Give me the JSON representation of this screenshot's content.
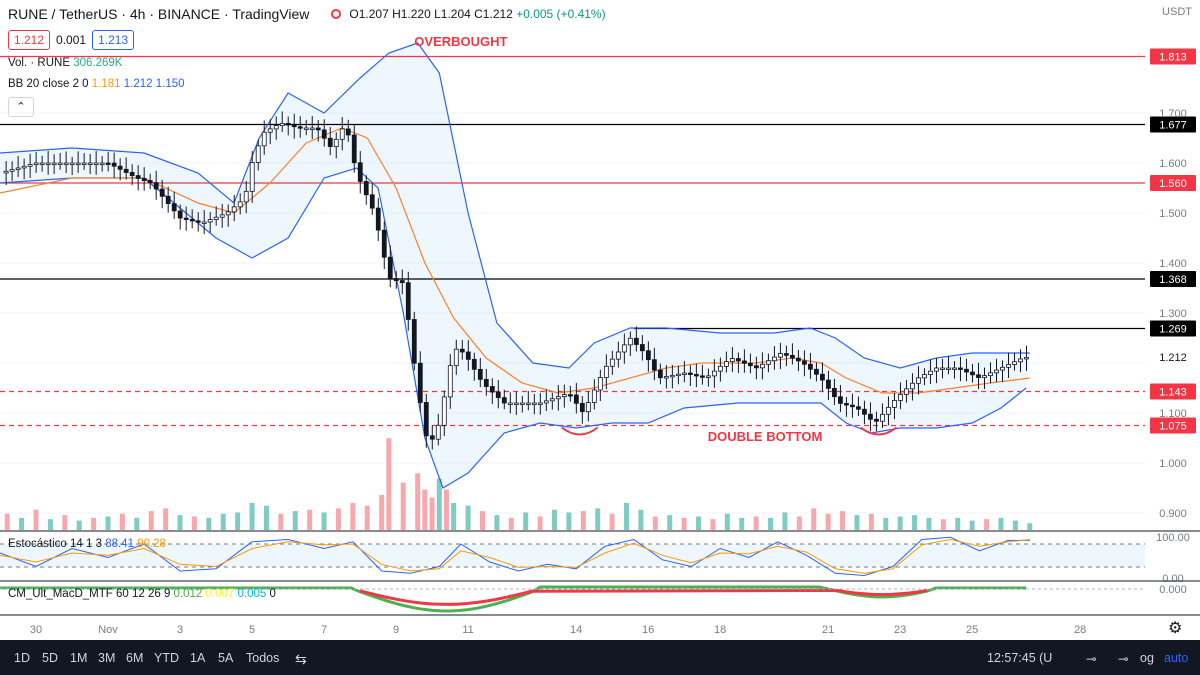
{
  "header": {
    "symbol": "RUNE / TetherUS · 4h · BINANCE · TradingView",
    "ohlc": "O1.207 H1.220 L1.204 C1.212",
    "change": "+0.005 (+0.41%)",
    "bid": "1.212",
    "spread": "0.001",
    "ask": "1.213",
    "currency": "USDT"
  },
  "indicators": {
    "volume_label": "Vol. · RUNE",
    "volume_value": "306.269K",
    "bb_label": "BB 20 close 2 0",
    "bb_basis": "1.181",
    "bb_upper": "1.212",
    "bb_lower": "1.150",
    "stoch_label": "Estocástico 14 1 3",
    "stoch_k": "88.41",
    "stoch_d": "90.28",
    "macd_label": "CM_Ult_MacD_MTF 60 12 26 9",
    "macd_v1": "0.012",
    "macd_v2": "0.007",
    "macd_v3": "0.005",
    "macd_v4": "0"
  },
  "colors": {
    "up": "#26a69a",
    "down": "#131722",
    "bb_band": "#2962ff",
    "bb_basis": "#ff7f27",
    "resistance": "#f23645",
    "level_black": "#000000",
    "vol_up": "#80cbc4",
    "vol_down": "#f7a8ad"
  },
  "annotations": {
    "overbought": "OVERBOUGHT",
    "double_bottom": "DOUBLE BOTTOM"
  },
  "toolbar": {
    "timeframes": [
      "1D",
      "5D",
      "1M",
      "3M",
      "6M",
      "YTD",
      "1A",
      "5A",
      "Todos"
    ],
    "clock": "12:57:45 (U",
    "log_label": "og",
    "auto_label": "auto",
    "compare_icon": "calendar-range-icon",
    "settings_icon": "gear-icon"
  },
  "chart_data": {
    "type": "candlestick",
    "ylim": [
      0.87,
      1.87
    ],
    "y_ticks": [
      0.9,
      1.0,
      1.1,
      1.2,
      1.3,
      1.4,
      1.5,
      1.6,
      1.7
    ],
    "y_tick_labels": [
      "0.900",
      "1.000",
      "1.100",
      "1.200",
      "1.300",
      "1.400",
      "1.500",
      "1.600",
      "1.700"
    ],
    "current_price": "1.212",
    "x_labels": [
      "30",
      "Nov",
      "3",
      "5",
      "7",
      "9",
      "11",
      "14",
      "16",
      "18",
      "21",
      "23",
      "25",
      "28"
    ],
    "x_label_days": [
      -1,
      1,
      3,
      5,
      7,
      9,
      11,
      14,
      16,
      18,
      21,
      23,
      25,
      28
    ],
    "days_shown": [
      -2.0,
      29.8
    ],
    "levels": [
      {
        "value": 1.813,
        "label": "1.813",
        "style": "solid",
        "color": "#f23645"
      },
      {
        "value": 1.677,
        "label": "1.677",
        "style": "solid",
        "color": "#000000"
      },
      {
        "value": 1.56,
        "label": "1.560",
        "style": "solid",
        "color": "#f23645"
      },
      {
        "value": 1.368,
        "label": "1.368",
        "style": "solid",
        "color": "#000000"
      },
      {
        "value": 1.269,
        "label": "1.269",
        "style": "solid",
        "color": "#000000",
        "partial": true
      },
      {
        "value": 1.143,
        "label": "1.143",
        "style": "dashed",
        "color": "#f23645"
      },
      {
        "value": 1.075,
        "label": "1.075",
        "style": "dashed",
        "color": "#f23645"
      }
    ],
    "price_path": [
      [
        -2.0,
        1.58
      ],
      [
        -1.0,
        1.6
      ],
      [
        0.0,
        1.6
      ],
      [
        1.0,
        1.6
      ],
      [
        1.8,
        1.57
      ],
      [
        2.2,
        1.56
      ],
      [
        3.0,
        1.49
      ],
      [
        3.6,
        1.48
      ],
      [
        4.3,
        1.5
      ],
      [
        4.8,
        1.53
      ],
      [
        5.0,
        1.6
      ],
      [
        5.3,
        1.66
      ],
      [
        5.8,
        1.68
      ],
      [
        6.3,
        1.67
      ],
      [
        6.8,
        1.67
      ],
      [
        7.2,
        1.63
      ],
      [
        7.6,
        1.68
      ],
      [
        7.9,
        1.58
      ],
      [
        8.4,
        1.5
      ],
      [
        8.8,
        1.37
      ],
      [
        9.2,
        1.36
      ],
      [
        9.6,
        1.15
      ],
      [
        9.9,
        1.03
      ],
      [
        10.2,
        1.08
      ],
      [
        10.6,
        1.23
      ],
      [
        10.9,
        1.22
      ],
      [
        11.4,
        1.16
      ],
      [
        12.0,
        1.12
      ],
      [
        13.0,
        1.12
      ],
      [
        13.8,
        1.14
      ],
      [
        14.2,
        1.1
      ],
      [
        14.8,
        1.19
      ],
      [
        15.5,
        1.25
      ],
      [
        15.9,
        1.22
      ],
      [
        16.3,
        1.17
      ],
      [
        17.0,
        1.18
      ],
      [
        17.6,
        1.17
      ],
      [
        18.3,
        1.21
      ],
      [
        19.0,
        1.19
      ],
      [
        19.7,
        1.22
      ],
      [
        20.3,
        1.2
      ],
      [
        20.8,
        1.17
      ],
      [
        21.3,
        1.12
      ],
      [
        21.8,
        1.11
      ],
      [
        22.3,
        1.08
      ],
      [
        22.9,
        1.13
      ],
      [
        23.5,
        1.17
      ],
      [
        24.0,
        1.19
      ],
      [
        24.6,
        1.19
      ],
      [
        25.2,
        1.17
      ],
      [
        25.8,
        1.19
      ],
      [
        26.4,
        1.21
      ],
      [
        26.6,
        1.212
      ]
    ],
    "bb_upper_path": [
      [
        -2.0,
        1.62
      ],
      [
        0.0,
        1.63
      ],
      [
        2.0,
        1.62
      ],
      [
        3.5,
        1.58
      ],
      [
        4.5,
        1.52
      ],
      [
        5.2,
        1.65
      ],
      [
        6.0,
        1.74
      ],
      [
        7.0,
        1.7
      ],
      [
        8.0,
        1.77
      ],
      [
        8.8,
        1.82
      ],
      [
        9.6,
        1.84
      ],
      [
        10.2,
        1.78
      ],
      [
        11.0,
        1.5
      ],
      [
        11.8,
        1.28
      ],
      [
        12.8,
        1.2
      ],
      [
        13.8,
        1.19
      ],
      [
        14.5,
        1.24
      ],
      [
        15.5,
        1.27
      ],
      [
        16.5,
        1.27
      ],
      [
        18.0,
        1.26
      ],
      [
        19.5,
        1.26
      ],
      [
        20.5,
        1.27
      ],
      [
        21.2,
        1.25
      ],
      [
        22.0,
        1.21
      ],
      [
        23.0,
        1.19
      ],
      [
        24.0,
        1.21
      ],
      [
        25.0,
        1.22
      ],
      [
        26.0,
        1.22
      ],
      [
        26.6,
        1.22
      ]
    ],
    "bb_lower_path": [
      [
        -2.0,
        1.56
      ],
      [
        0.0,
        1.57
      ],
      [
        2.0,
        1.57
      ],
      [
        3.0,
        1.51
      ],
      [
        4.0,
        1.45
      ],
      [
        5.0,
        1.41
      ],
      [
        6.0,
        1.45
      ],
      [
        7.0,
        1.57
      ],
      [
        7.9,
        1.59
      ],
      [
        8.5,
        1.55
      ],
      [
        9.2,
        1.3
      ],
      [
        9.8,
        1.05
      ],
      [
        10.3,
        0.95
      ],
      [
        11.0,
        0.98
      ],
      [
        12.0,
        1.06
      ],
      [
        13.0,
        1.08
      ],
      [
        14.0,
        1.07
      ],
      [
        15.0,
        1.08
      ],
      [
        16.0,
        1.08
      ],
      [
        17.0,
        1.11
      ],
      [
        18.5,
        1.12
      ],
      [
        20.0,
        1.12
      ],
      [
        20.8,
        1.12
      ],
      [
        21.5,
        1.08
      ],
      [
        22.2,
        1.06
      ],
      [
        23.0,
        1.07
      ],
      [
        24.0,
        1.07
      ],
      [
        25.0,
        1.08
      ],
      [
        25.8,
        1.11
      ],
      [
        26.5,
        1.15
      ]
    ],
    "bb_basis_path": [
      [
        -2.0,
        1.54
      ],
      [
        0.0,
        1.57
      ],
      [
        2.0,
        1.57
      ],
      [
        3.5,
        1.52
      ],
      [
        4.5,
        1.5
      ],
      [
        5.5,
        1.56
      ],
      [
        6.5,
        1.64
      ],
      [
        7.5,
        1.67
      ],
      [
        8.2,
        1.65
      ],
      [
        9.0,
        1.55
      ],
      [
        9.8,
        1.4
      ],
      [
        10.6,
        1.29
      ],
      [
        11.5,
        1.21
      ],
      [
        12.5,
        1.16
      ],
      [
        13.5,
        1.14
      ],
      [
        14.5,
        1.15
      ],
      [
        15.5,
        1.17
      ],
      [
        16.5,
        1.19
      ],
      [
        17.5,
        1.2
      ],
      [
        19.0,
        1.2
      ],
      [
        20.0,
        1.21
      ],
      [
        20.8,
        1.2
      ],
      [
        21.5,
        1.17
      ],
      [
        22.5,
        1.14
      ],
      [
        23.5,
        1.14
      ],
      [
        24.5,
        1.15
      ],
      [
        25.5,
        1.16
      ],
      [
        26.6,
        1.17
      ]
    ],
    "double_bottom_days": [
      14.1,
      22.4
    ],
    "overbought_day": 10.8,
    "stochastic": {
      "ylim": [
        0,
        100
      ],
      "tick_labels": [
        "100.00",
        "0.00"
      ],
      "k_path": [
        [
          -2,
          60
        ],
        [
          -1,
          30
        ],
        [
          0,
          70
        ],
        [
          1,
          50
        ],
        [
          2,
          80
        ],
        [
          3,
          20
        ],
        [
          4,
          25
        ],
        [
          5,
          85
        ],
        [
          6,
          90
        ],
        [
          7,
          70
        ],
        [
          7.8,
          85
        ],
        [
          8.6,
          20
        ],
        [
          9.4,
          15
        ],
        [
          10.2,
          30
        ],
        [
          10.8,
          80
        ],
        [
          11.6,
          40
        ],
        [
          12.4,
          20
        ],
        [
          13.2,
          35
        ],
        [
          14,
          25
        ],
        [
          14.8,
          75
        ],
        [
          15.6,
          90
        ],
        [
          16.4,
          45
        ],
        [
          17.2,
          30
        ],
        [
          18,
          70
        ],
        [
          18.8,
          50
        ],
        [
          19.6,
          85
        ],
        [
          20.4,
          55
        ],
        [
          21.2,
          15
        ],
        [
          22.0,
          10
        ],
        [
          22.8,
          30
        ],
        [
          23.6,
          90
        ],
        [
          24.4,
          95
        ],
        [
          25.2,
          65
        ],
        [
          26.0,
          88
        ],
        [
          26.6,
          88
        ]
      ],
      "d_path": [
        [
          -2,
          55
        ],
        [
          -1,
          40
        ],
        [
          0,
          60
        ],
        [
          1,
          55
        ],
        [
          2,
          70
        ],
        [
          3,
          35
        ],
        [
          4,
          30
        ],
        [
          5,
          70
        ],
        [
          6,
          85
        ],
        [
          7,
          78
        ],
        [
          7.8,
          80
        ],
        [
          8.6,
          35
        ],
        [
          9.4,
          20
        ],
        [
          10.2,
          25
        ],
        [
          10.8,
          65
        ],
        [
          11.6,
          50
        ],
        [
          12.4,
          28
        ],
        [
          13.2,
          30
        ],
        [
          14,
          28
        ],
        [
          14.8,
          60
        ],
        [
          15.6,
          82
        ],
        [
          16.4,
          55
        ],
        [
          17.2,
          38
        ],
        [
          18,
          60
        ],
        [
          18.8,
          58
        ],
        [
          19.6,
          75
        ],
        [
          20.4,
          62
        ],
        [
          21.2,
          25
        ],
        [
          22.0,
          15
        ],
        [
          22.8,
          25
        ],
        [
          23.6,
          78
        ],
        [
          24.4,
          90
        ],
        [
          25.2,
          75
        ],
        [
          26.0,
          85
        ],
        [
          26.6,
          90
        ]
      ]
    },
    "volume": {
      "ylim": [
        0,
        1000
      ],
      "bars": [
        [
          -1.8,
          120,
          "down"
        ],
        [
          -1.4,
          90,
          "up"
        ],
        [
          -1.0,
          150,
          "down"
        ],
        [
          -0.6,
          80,
          "up"
        ],
        [
          -0.2,
          110,
          "down"
        ],
        [
          0.2,
          70,
          "up"
        ],
        [
          0.6,
          90,
          "down"
        ],
        [
          1.0,
          100,
          "up"
        ],
        [
          1.4,
          120,
          "down"
        ],
        [
          1.8,
          90,
          "up"
        ],
        [
          2.2,
          140,
          "down"
        ],
        [
          2.6,
          160,
          "down"
        ],
        [
          3.0,
          110,
          "up"
        ],
        [
          3.4,
          100,
          "down"
        ],
        [
          3.8,
          90,
          "up"
        ],
        [
          4.2,
          120,
          "up"
        ],
        [
          4.6,
          130,
          "up"
        ],
        [
          5.0,
          200,
          "up"
        ],
        [
          5.4,
          180,
          "up"
        ],
        [
          5.8,
          120,
          "down"
        ],
        [
          6.2,
          140,
          "up"
        ],
        [
          6.6,
          150,
          "down"
        ],
        [
          7.0,
          130,
          "up"
        ],
        [
          7.4,
          160,
          "down"
        ],
        [
          7.8,
          200,
          "down"
        ],
        [
          8.2,
          180,
          "down"
        ],
        [
          8.6,
          260,
          "down"
        ],
        [
          8.8,
          680,
          "down"
        ],
        [
          9.2,
          350,
          "down"
        ],
        [
          9.6,
          420,
          "down"
        ],
        [
          9.8,
          300,
          "down"
        ],
        [
          10.0,
          240,
          "down"
        ],
        [
          10.2,
          380,
          "up"
        ],
        [
          10.4,
          300,
          "down"
        ],
        [
          10.6,
          200,
          "up"
        ],
        [
          11.0,
          180,
          "up"
        ],
        [
          11.4,
          140,
          "down"
        ],
        [
          11.8,
          110,
          "up"
        ],
        [
          12.2,
          90,
          "down"
        ],
        [
          12.6,
          130,
          "up"
        ],
        [
          13.0,
          100,
          "down"
        ],
        [
          13.4,
          150,
          "up"
        ],
        [
          13.8,
          130,
          "up"
        ],
        [
          14.2,
          140,
          "down"
        ],
        [
          14.6,
          160,
          "up"
        ],
        [
          15.0,
          120,
          "down"
        ],
        [
          15.4,
          200,
          "up"
        ],
        [
          15.8,
          150,
          "up"
        ],
        [
          16.2,
          100,
          "down"
        ],
        [
          16.6,
          110,
          "up"
        ],
        [
          17.0,
          90,
          "down"
        ],
        [
          17.4,
          100,
          "up"
        ],
        [
          17.8,
          80,
          "down"
        ],
        [
          18.2,
          120,
          "up"
        ],
        [
          18.6,
          90,
          "up"
        ],
        [
          19.0,
          100,
          "down"
        ],
        [
          19.4,
          90,
          "up"
        ],
        [
          19.8,
          130,
          "up"
        ],
        [
          20.2,
          100,
          "down"
        ],
        [
          20.6,
          160,
          "down"
        ],
        [
          21.0,
          120,
          "down"
        ],
        [
          21.4,
          140,
          "down"
        ],
        [
          21.8,
          110,
          "up"
        ],
        [
          22.2,
          120,
          "down"
        ],
        [
          22.6,
          90,
          "up"
        ],
        [
          23.0,
          100,
          "up"
        ],
        [
          23.4,
          110,
          "up"
        ],
        [
          23.8,
          90,
          "up"
        ],
        [
          24.2,
          80,
          "down"
        ],
        [
          24.6,
          90,
          "up"
        ],
        [
          25.0,
          70,
          "up"
        ],
        [
          25.4,
          80,
          "down"
        ],
        [
          25.8,
          90,
          "up"
        ],
        [
          26.2,
          70,
          "up"
        ],
        [
          26.6,
          50,
          "up"
        ]
      ]
    }
  }
}
